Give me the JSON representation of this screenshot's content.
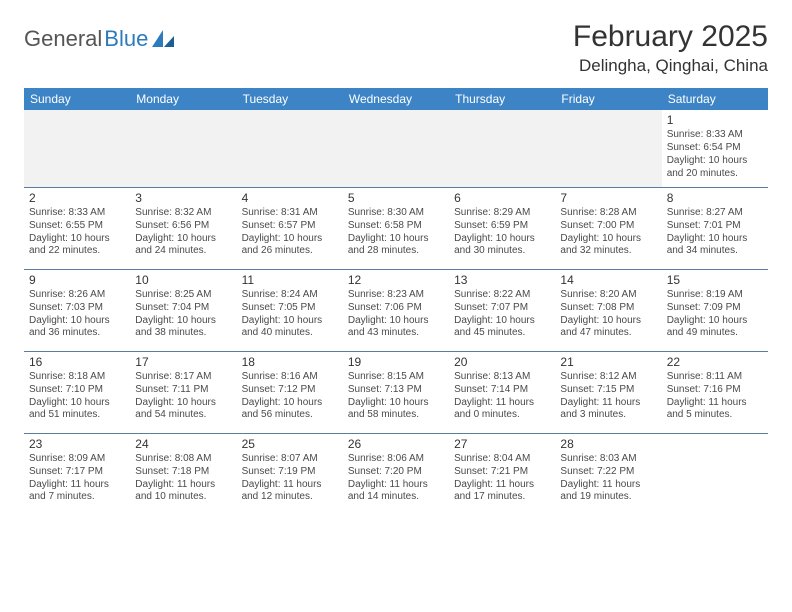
{
  "logo": {
    "general": "General",
    "blue": "Blue"
  },
  "title": "February 2025",
  "location": "Delingha, Qinghai, China",
  "colors": {
    "header_bg": "#3d84c6",
    "header_fg": "#ffffff",
    "row_divider": "#5a7ca0",
    "empty_bg": "#f2f2f2",
    "text": "#4a4a4a",
    "logo_accent": "#2b7bbd"
  },
  "weekdays": [
    "Sunday",
    "Monday",
    "Tuesday",
    "Wednesday",
    "Thursday",
    "Friday",
    "Saturday"
  ],
  "layout": {
    "first_weekday_index": 6,
    "days_in_month": 28
  },
  "days": {
    "1": {
      "sunrise": "8:33 AM",
      "sunset": "6:54 PM",
      "daylight": "10 hours and 20 minutes."
    },
    "2": {
      "sunrise": "8:33 AM",
      "sunset": "6:55 PM",
      "daylight": "10 hours and 22 minutes."
    },
    "3": {
      "sunrise": "8:32 AM",
      "sunset": "6:56 PM",
      "daylight": "10 hours and 24 minutes."
    },
    "4": {
      "sunrise": "8:31 AM",
      "sunset": "6:57 PM",
      "daylight": "10 hours and 26 minutes."
    },
    "5": {
      "sunrise": "8:30 AM",
      "sunset": "6:58 PM",
      "daylight": "10 hours and 28 minutes."
    },
    "6": {
      "sunrise": "8:29 AM",
      "sunset": "6:59 PM",
      "daylight": "10 hours and 30 minutes."
    },
    "7": {
      "sunrise": "8:28 AM",
      "sunset": "7:00 PM",
      "daylight": "10 hours and 32 minutes."
    },
    "8": {
      "sunrise": "8:27 AM",
      "sunset": "7:01 PM",
      "daylight": "10 hours and 34 minutes."
    },
    "9": {
      "sunrise": "8:26 AM",
      "sunset": "7:03 PM",
      "daylight": "10 hours and 36 minutes."
    },
    "10": {
      "sunrise": "8:25 AM",
      "sunset": "7:04 PM",
      "daylight": "10 hours and 38 minutes."
    },
    "11": {
      "sunrise": "8:24 AM",
      "sunset": "7:05 PM",
      "daylight": "10 hours and 40 minutes."
    },
    "12": {
      "sunrise": "8:23 AM",
      "sunset": "7:06 PM",
      "daylight": "10 hours and 43 minutes."
    },
    "13": {
      "sunrise": "8:22 AM",
      "sunset": "7:07 PM",
      "daylight": "10 hours and 45 minutes."
    },
    "14": {
      "sunrise": "8:20 AM",
      "sunset": "7:08 PM",
      "daylight": "10 hours and 47 minutes."
    },
    "15": {
      "sunrise": "8:19 AM",
      "sunset": "7:09 PM",
      "daylight": "10 hours and 49 minutes."
    },
    "16": {
      "sunrise": "8:18 AM",
      "sunset": "7:10 PM",
      "daylight": "10 hours and 51 minutes."
    },
    "17": {
      "sunrise": "8:17 AM",
      "sunset": "7:11 PM",
      "daylight": "10 hours and 54 minutes."
    },
    "18": {
      "sunrise": "8:16 AM",
      "sunset": "7:12 PM",
      "daylight": "10 hours and 56 minutes."
    },
    "19": {
      "sunrise": "8:15 AM",
      "sunset": "7:13 PM",
      "daylight": "10 hours and 58 minutes."
    },
    "20": {
      "sunrise": "8:13 AM",
      "sunset": "7:14 PM",
      "daylight": "11 hours and 0 minutes."
    },
    "21": {
      "sunrise": "8:12 AM",
      "sunset": "7:15 PM",
      "daylight": "11 hours and 3 minutes."
    },
    "22": {
      "sunrise": "8:11 AM",
      "sunset": "7:16 PM",
      "daylight": "11 hours and 5 minutes."
    },
    "23": {
      "sunrise": "8:09 AM",
      "sunset": "7:17 PM",
      "daylight": "11 hours and 7 minutes."
    },
    "24": {
      "sunrise": "8:08 AM",
      "sunset": "7:18 PM",
      "daylight": "11 hours and 10 minutes."
    },
    "25": {
      "sunrise": "8:07 AM",
      "sunset": "7:19 PM",
      "daylight": "11 hours and 12 minutes."
    },
    "26": {
      "sunrise": "8:06 AM",
      "sunset": "7:20 PM",
      "daylight": "11 hours and 14 minutes."
    },
    "27": {
      "sunrise": "8:04 AM",
      "sunset": "7:21 PM",
      "daylight": "11 hours and 17 minutes."
    },
    "28": {
      "sunrise": "8:03 AM",
      "sunset": "7:22 PM",
      "daylight": "11 hours and 19 minutes."
    }
  },
  "labels": {
    "sunrise": "Sunrise: ",
    "sunset": "Sunset: ",
    "daylight": "Daylight: "
  }
}
